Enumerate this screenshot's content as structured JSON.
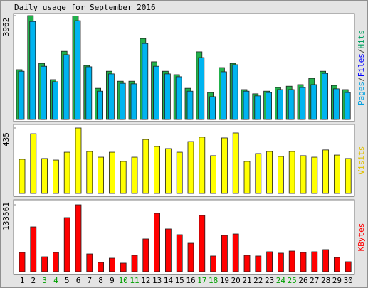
{
  "chart_data": {
    "type": "bar",
    "title": "Daily usage for September 2016",
    "categories": [
      "1",
      "2",
      "3",
      "4",
      "5",
      "6",
      "7",
      "8",
      "9",
      "10",
      "11",
      "12",
      "13",
      "14",
      "15",
      "16",
      "17",
      "18",
      "19",
      "20",
      "21",
      "22",
      "23",
      "24",
      "25",
      "26",
      "27",
      "28",
      "29",
      "30"
    ],
    "category_colors": [
      "#000000",
      "#000000",
      "#00a000",
      "#00a000",
      "#000000",
      "#000000",
      "#000000",
      "#000000",
      "#000000",
      "#00a000",
      "#00a000",
      "#000000",
      "#000000",
      "#000000",
      "#000000",
      "#000000",
      "#00a000",
      "#00a000",
      "#000000",
      "#000000",
      "#000000",
      "#000000",
      "#000000",
      "#00a000",
      "#00a000",
      "#000000",
      "#000000",
      "#000000",
      "#000000",
      "#000000"
    ],
    "panels": [
      {
        "ylim": [
          0,
          3962
        ],
        "yticks": [
          3962
        ],
        "label_parts": [
          {
            "text": "Pages",
            "color": "#00a0e0"
          },
          {
            "text": "/",
            "color": "#404040"
          },
          {
            "text": "Files",
            "color": "#0000ff"
          },
          {
            "text": "/",
            "color": "#404040"
          },
          {
            "text": "Hits",
            "color": "#00a060"
          }
        ],
        "series": [
          {
            "name": "Hits",
            "color": "#22b14c",
            "values": [
              1900,
              3962,
              2140,
              1520,
              2600,
              3950,
              2060,
              1190,
              1840,
              1460,
              1460,
              3090,
              2200,
              1840,
              1710,
              1190,
              2580,
              1030,
              1980,
              2140,
              1140,
              980,
              1080,
              1220,
              1270,
              1330,
              1570,
              1840,
              1300,
              1140
            ]
          },
          {
            "name": "Pages",
            "color": "#00b4f0",
            "values": [
              1840,
              3740,
              2030,
              1440,
              2470,
              3770,
              2010,
              1080,
              1740,
              1380,
              1360,
              2900,
              2030,
              1740,
              1630,
              1080,
              2360,
              870,
              1820,
              2090,
              1080,
              900,
              1030,
              1140,
              1140,
              1220,
              1330,
              1760,
              1170,
              1030
            ]
          }
        ]
      },
      {
        "ylim": [
          0,
          435
        ],
        "yticks": [
          435
        ],
        "label_parts": [
          {
            "text": "Visits",
            "color": "#e0c000"
          }
        ],
        "series": [
          {
            "name": "Visits",
            "color": "#ffff00",
            "values": [
              227,
              397,
              232,
              222,
              274,
              435,
              279,
              241,
              274,
              213,
              241,
              359,
              312,
              298,
              274,
              345,
              374,
              251,
              369,
              402,
              213,
              265,
              279,
              246,
              279,
              251,
              241,
              289,
              255,
              232
            ]
          }
        ]
      },
      {
        "ylim": [
          0,
          133561
        ],
        "yticks": [
          133561
        ],
        "label_parts": [
          {
            "text": "KBytes",
            "color": "#ff0000"
          }
        ],
        "series": [
          {
            "name": "KBytes",
            "color": "#ff0000",
            "values": [
              38400,
              89500,
              29800,
              38400,
              108000,
              133561,
              35500,
              18500,
              27000,
              17100,
              32700,
              65400,
              116500,
              85300,
              73900,
              56800,
              112300,
              31300,
              72500,
              75300,
              32700,
              31300,
              39800,
              37000,
              41200,
              38400,
              39800,
              44100,
              28400,
              19900
            ]
          }
        ]
      }
    ]
  }
}
